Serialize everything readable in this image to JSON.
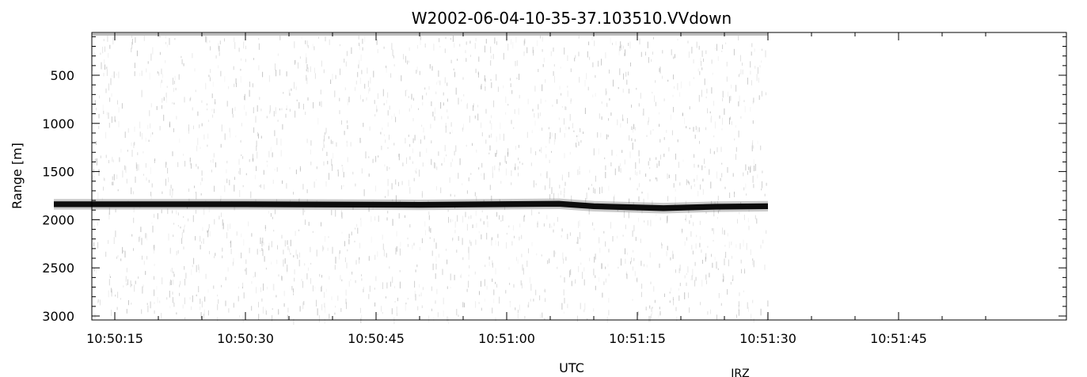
{
  "chart_data": {
    "type": "heatmap",
    "title": "W2002-06-04-10-35-37.103510.VVdown",
    "xlabel": "UTC",
    "ylabel": "Range [m]",
    "footer": "IRZ",
    "x_ticks": [
      "10:50:15",
      "10:50:30",
      "10:50:45",
      "10:51:00",
      "10:51:15",
      "10:51:30",
      "10:51:45"
    ],
    "y_ticks": [
      "500",
      "1000",
      "1500",
      "2000",
      "2500",
      "3000"
    ],
    "ylim": [
      3020,
      60
    ],
    "y_inverted": true,
    "data_end_time": "10:51:30",
    "echo_layer": {
      "description_points": [
        {
          "t": "10:50:08",
          "range": 1840
        },
        {
          "t": "10:50:30",
          "range": 1840
        },
        {
          "t": "10:50:50",
          "range": 1845
        },
        {
          "t": "10:51:06",
          "range": 1835
        },
        {
          "t": "10:51:10",
          "range": 1860
        },
        {
          "t": "10:51:18",
          "range": 1880
        },
        {
          "t": "10:51:24",
          "range": 1865
        },
        {
          "t": "10:51:30",
          "range": 1860
        }
      ],
      "thickness_m": 60
    },
    "grid": false,
    "colormap": "grayscale-inverted"
  }
}
